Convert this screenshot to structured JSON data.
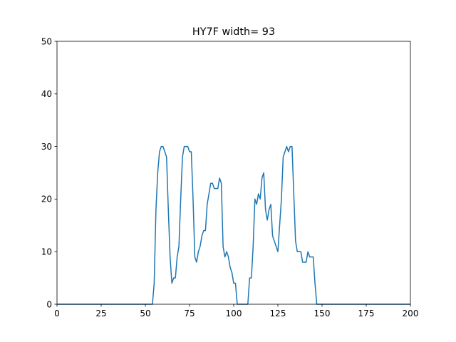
{
  "chart_data": {
    "type": "line",
    "title": "HY7F width= 93",
    "xlabel": "",
    "ylabel": "",
    "xlim": [
      0,
      200
    ],
    "ylim": [
      0,
      50
    ],
    "xticks": [
      0,
      25,
      50,
      75,
      100,
      125,
      150,
      175,
      200
    ],
    "yticks": [
      0,
      10,
      20,
      30,
      40,
      50
    ],
    "grid": false,
    "line_color": "#1f77b4",
    "series": [
      {
        "points": [
          [
            0,
            0
          ],
          [
            54,
            0
          ],
          [
            55,
            4
          ],
          [
            56,
            18
          ],
          [
            57,
            25
          ],
          [
            58,
            29
          ],
          [
            59,
            30
          ],
          [
            60,
            30
          ],
          [
            61,
            29
          ],
          [
            62,
            28
          ],
          [
            63,
            18
          ],
          [
            64,
            9
          ],
          [
            65,
            4
          ],
          [
            66,
            5
          ],
          [
            67,
            5
          ],
          [
            68,
            9
          ],
          [
            69,
            11
          ],
          [
            70,
            20
          ],
          [
            71,
            28
          ],
          [
            72,
            30
          ],
          [
            73,
            30
          ],
          [
            74,
            30
          ],
          [
            75,
            29
          ],
          [
            76,
            29
          ],
          [
            77,
            20
          ],
          [
            78,
            9
          ],
          [
            79,
            8
          ],
          [
            80,
            10
          ],
          [
            81,
            11
          ],
          [
            82,
            13
          ],
          [
            83,
            14
          ],
          [
            84,
            14
          ],
          [
            85,
            19
          ],
          [
            86,
            21
          ],
          [
            87,
            23
          ],
          [
            88,
            23
          ],
          [
            89,
            22
          ],
          [
            90,
            22
          ],
          [
            91,
            22
          ],
          [
            92,
            24
          ],
          [
            93,
            23
          ],
          [
            94,
            11
          ],
          [
            95,
            9
          ],
          [
            96,
            10
          ],
          [
            97,
            9
          ],
          [
            98,
            7
          ],
          [
            99,
            6
          ],
          [
            100,
            4
          ],
          [
            101,
            4
          ],
          [
            102,
            0
          ],
          [
            103,
            0
          ],
          [
            107,
            0
          ],
          [
            108,
            0
          ],
          [
            109,
            5
          ],
          [
            110,
            5
          ],
          [
            111,
            11
          ],
          [
            112,
            20
          ],
          [
            113,
            19
          ],
          [
            114,
            21
          ],
          [
            115,
            20
          ],
          [
            116,
            24
          ],
          [
            117,
            25
          ],
          [
            118,
            18
          ],
          [
            119,
            16
          ],
          [
            120,
            18
          ],
          [
            121,
            19
          ],
          [
            122,
            13
          ],
          [
            123,
            12
          ],
          [
            124,
            11
          ],
          [
            125,
            10
          ],
          [
            126,
            15
          ],
          [
            127,
            20
          ],
          [
            128,
            28
          ],
          [
            129,
            29
          ],
          [
            130,
            30
          ],
          [
            131,
            29
          ],
          [
            132,
            30
          ],
          [
            133,
            30
          ],
          [
            134,
            21
          ],
          [
            135,
            12
          ],
          [
            136,
            10
          ],
          [
            137,
            10
          ],
          [
            138,
            10
          ],
          [
            139,
            8
          ],
          [
            140,
            8
          ],
          [
            141,
            8
          ],
          [
            142,
            10
          ],
          [
            143,
            9
          ],
          [
            144,
            9
          ],
          [
            145,
            9
          ],
          [
            146,
            4
          ],
          [
            147,
            0
          ],
          [
            148,
            0
          ],
          [
            200,
            0
          ]
        ]
      }
    ]
  }
}
